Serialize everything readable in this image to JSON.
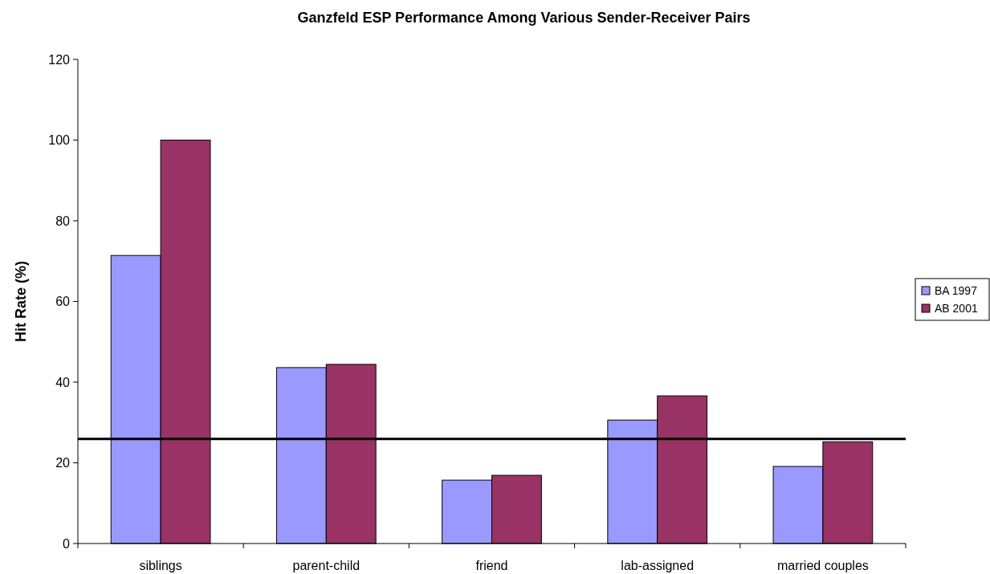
{
  "chart_data": {
    "type": "bar",
    "title": "Ganzfeld ESP Performance Among Various Sender-Receiver Pairs",
    "ylabel": "Hit Rate (%)",
    "categories": [
      "siblings",
      "parent-child",
      "friend",
      "lab-assigned",
      "married couples"
    ],
    "series": [
      {
        "name": "BA 1997",
        "color": "#9999ff",
        "values": [
          71.4,
          43.6,
          15.7,
          30.6,
          19.1
        ]
      },
      {
        "name": "AB 2001",
        "color": "#993366",
        "values": [
          100,
          44.4,
          16.9,
          36.6,
          25.2
        ]
      }
    ],
    "ylim": [
      0,
      120
    ],
    "yticks": [
      0,
      20,
      40,
      60,
      80,
      100,
      120
    ],
    "grid": false,
    "legend": "right",
    "ref_lines": [
      {
        "axis": "y",
        "value": 25.9,
        "color": "#000000"
      }
    ]
  }
}
